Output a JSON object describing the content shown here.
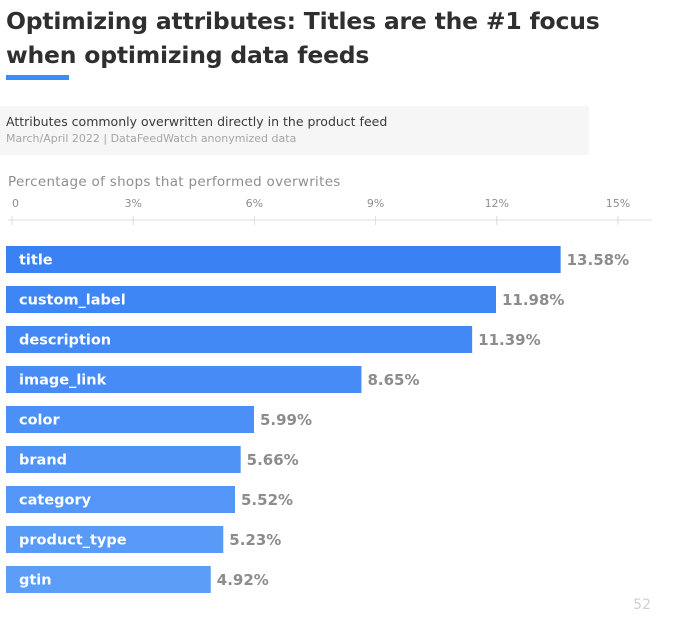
{
  "header": {
    "title": "Optimizing attributes: Titles are the #1 focus when optimizing data feeds"
  },
  "caption": {
    "main": "Attributes commonly overwritten directly in the product feed",
    "sub": "March/April 2022 | DataFeedWatch anonymized data"
  },
  "footer": {
    "page_number": "52"
  },
  "colors": {
    "accent": "#3b8cf5",
    "bar_top": "#3a82f4",
    "bar_bottom": "#5c9df8"
  },
  "chart_data": {
    "type": "bar",
    "orientation": "horizontal",
    "xlabel": "Percentage of shops that performed overwrites",
    "xlim": [
      0,
      15
    ],
    "ticks": [
      0,
      3,
      6,
      9,
      12,
      15
    ],
    "tick_labels": [
      "0",
      "3%",
      "6%",
      "9%",
      "12%",
      "15%"
    ],
    "categories": [
      "title",
      "custom_label",
      "description",
      "image_link",
      "color",
      "brand",
      "category",
      "product_type",
      "gtin"
    ],
    "values": [
      13.58,
      11.98,
      11.39,
      8.65,
      5.99,
      5.66,
      5.52,
      5.23,
      4.92
    ],
    "value_labels": [
      "13.58%",
      "11.98%",
      "11.39%",
      "8.65%",
      "5.99%",
      "5.66%",
      "5.52%",
      "5.23%",
      "4.92%"
    ],
    "grid": false,
    "legend": "none"
  }
}
